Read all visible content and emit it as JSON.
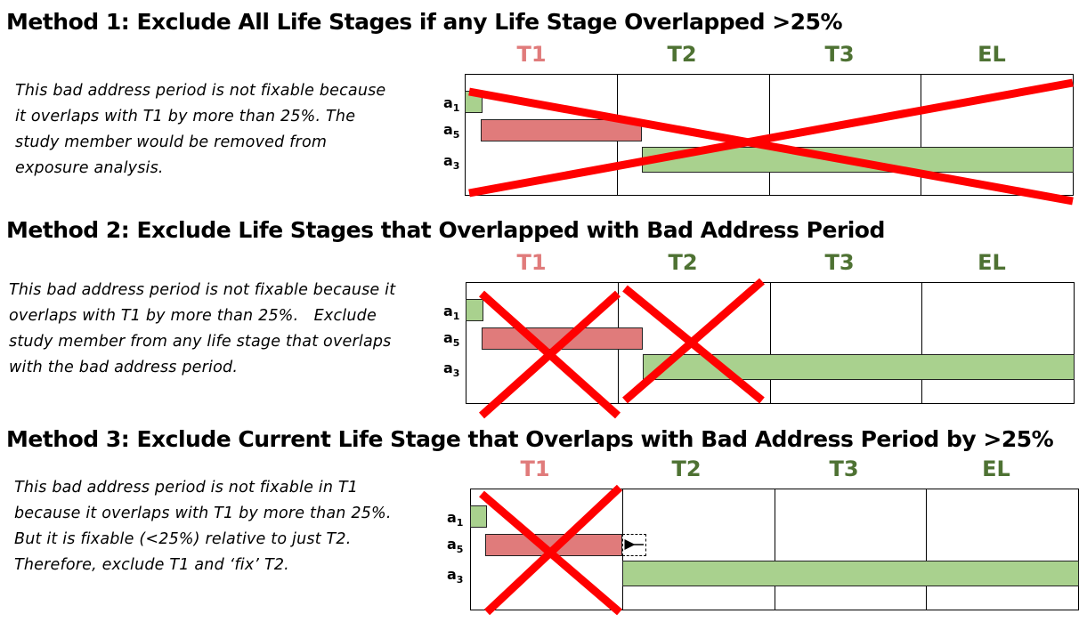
{
  "colors": {
    "t1": "#e07b7b",
    "dark_green": "#4e7233",
    "bar_green": "#a9d18e",
    "bar_red": "#e07b7b",
    "cross": "#ff0000"
  },
  "methods": [
    {
      "title": "Method 1: Exclude All Life Stages if any Life Stage Overlapped >25%",
      "description": "This bad address period is not fixable because\nit overlaps with T1 by more than 25%. The\nstudy member would be removed from\nexposure analysis.",
      "stages": [
        "T1",
        "T2",
        "T3",
        "EL"
      ],
      "rows": [
        "a",
        "a",
        "a"
      ],
      "row_subs": [
        "1",
        "5",
        "3"
      ]
    },
    {
      "title": "Method 2: Exclude Life Stages that Overlapped with Bad Address Period",
      "description": "This bad address period is not fixable because it\noverlaps with T1 by more than 25%.   Exclude\nstudy member from any life stage that overlaps\nwith the bad address period.",
      "stages": [
        "T1",
        "T2",
        "T3",
        "EL"
      ],
      "rows": [
        "a",
        "a",
        "a"
      ],
      "row_subs": [
        "1",
        "5",
        "3"
      ]
    },
    {
      "title": "Method 3: Exclude Current Life Stage that Overlaps with Bad Address Period by  >25%",
      "description": "This bad address period is not fixable in T1\nbecause it overlaps with T1 by more than 25%.\nBut it is fixable (<25%) relative to just T2.\nTherefore, exclude T1 and ‘fix’ T2.",
      "stages": [
        "T1",
        "T2",
        "T3",
        "EL"
      ],
      "rows": [
        "a",
        "a",
        "a"
      ],
      "row_subs": [
        "1",
        "5",
        "3"
      ]
    }
  ]
}
